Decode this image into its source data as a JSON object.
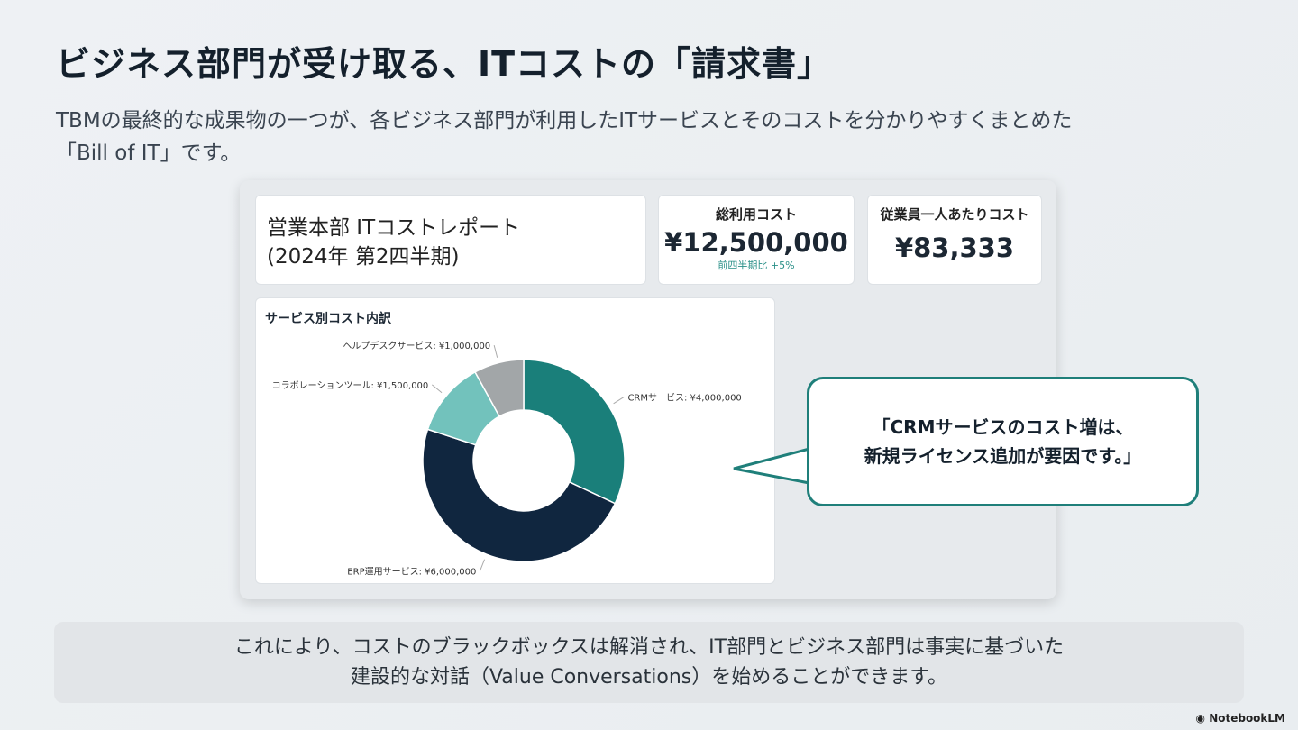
{
  "title": "ビジネス部門が受け取る、ITコストの「請求書」",
  "subtitle": [
    "TBMの最終的な成果物の一つが、各ビジネス部門が利用したITサービスとそのコストを分かりやすくまとめた",
    "「Bill of IT」です。"
  ],
  "report": {
    "title_line1": "営業本部 ITコストレポート",
    "title_line2": "(2024年 第2四半期)",
    "total_label": "総利用コスト",
    "total_value": "¥12,500,000",
    "total_delta": "前四半期比 +5%",
    "per_employee_label": "従業員一人あたりコスト",
    "per_employee_value": "¥83,333"
  },
  "chart_data": {
    "type": "donut",
    "title": "サービス別コスト内訳",
    "categories": [
      "CRMサービス",
      "ERP運用サービス",
      "コラボレーションツール",
      "ヘルプデスクサービス"
    ],
    "values": [
      4000000,
      6000000,
      1500000,
      1000000
    ],
    "labels": [
      "CRMサービス: ¥4,000,000",
      "ERP運用サービス: ¥6,000,000",
      "コラボレーションツール: ¥1,500,000",
      "ヘルプデスクサービス: ¥1,000,000"
    ],
    "colors": [
      "#1a7f7a",
      "#10263f",
      "#72c2bc",
      "#a2a6a8"
    ]
  },
  "callout": [
    "「CRMサービスのコスト増は、",
    "新規ライセンス追加が要因です。」"
  ],
  "conclusion": [
    "これにより、コストのブラックボックスは解消され、IT部門とビジネス部門は事実に基づいた",
    "建設的な対話（Value Conversations）を始めることができます。"
  ],
  "brand": "NotebookLM"
}
